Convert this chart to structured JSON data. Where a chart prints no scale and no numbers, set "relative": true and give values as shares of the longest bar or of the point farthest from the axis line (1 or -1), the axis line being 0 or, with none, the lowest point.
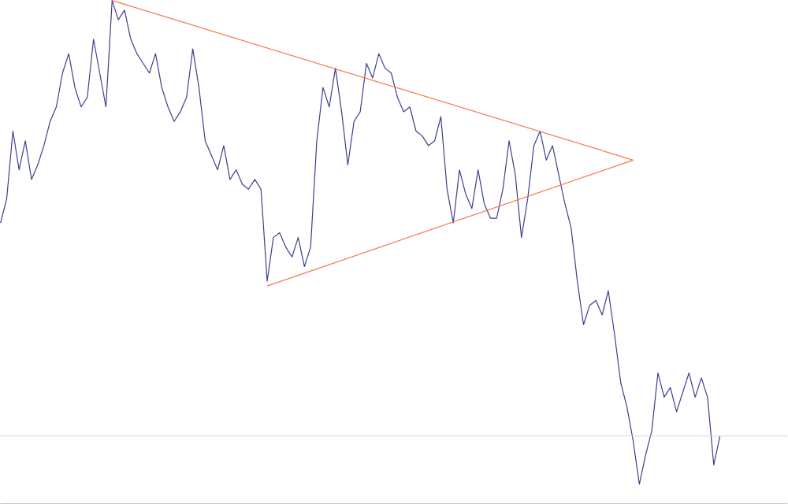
{
  "chart_data": {
    "type": "line",
    "relative": true,
    "categories": [
      null,
      null,
      null,
      null,
      null,
      null,
      null,
      null,
      null,
      null,
      null,
      null,
      null,
      null,
      null,
      null,
      null,
      null,
      null,
      null,
      null,
      null,
      null,
      null,
      null,
      null,
      null,
      null,
      null,
      null,
      null,
      null,
      null,
      null,
      null,
      null,
      null,
      null,
      null,
      null,
      null,
      null,
      null,
      null,
      null,
      null,
      null,
      null,
      null,
      null,
      null,
      null,
      null,
      null,
      null,
      null,
      null,
      null,
      null,
      null,
      null,
      null,
      null,
      null,
      null,
      null,
      null,
      null,
      null,
      null,
      null,
      null,
      null,
      null,
      null,
      null,
      null,
      null,
      null,
      null,
      null,
      null,
      null,
      null,
      null,
      null,
      null,
      null,
      null,
      null,
      null,
      null,
      null,
      null,
      null,
      null,
      null,
      null,
      null,
      null,
      null,
      null,
      null,
      null,
      null,
      null,
      null,
      null,
      null,
      null,
      null,
      null,
      null,
      null,
      null,
      null,
      null
    ],
    "series": [
      {
        "color": "#3b3f8c",
        "values": [
          0.54,
          0.59,
          0.73,
          0.65,
          0.71,
          0.63,
          0.66,
          0.7,
          0.75,
          0.78,
          0.85,
          0.89,
          0.82,
          0.78,
          0.8,
          0.92,
          0.85,
          0.78,
          1.0,
          0.96,
          0.98,
          0.92,
          0.89,
          0.87,
          0.85,
          0.89,
          0.82,
          0.78,
          0.75,
          0.77,
          0.8,
          0.9,
          0.82,
          0.71,
          0.68,
          0.65,
          0.7,
          0.63,
          0.65,
          0.62,
          0.61,
          0.63,
          0.61,
          0.42,
          0.51,
          0.52,
          0.49,
          0.47,
          0.51,
          0.45,
          0.49,
          0.71,
          0.82,
          0.78,
          0.86,
          0.77,
          0.66,
          0.75,
          0.77,
          0.87,
          0.84,
          0.89,
          0.86,
          0.85,
          0.8,
          0.77,
          0.78,
          0.73,
          0.72,
          0.7,
          0.71,
          0.76,
          0.61,
          0.54,
          0.65,
          0.6,
          0.57,
          0.65,
          0.58,
          0.55,
          0.55,
          0.61,
          0.71,
          0.64,
          0.51,
          0.59,
          0.7,
          0.73,
          0.67,
          0.7,
          0.64,
          0.58,
          0.53,
          0.42,
          0.33,
          0.37,
          0.38,
          0.35,
          0.4,
          0.31,
          0.21,
          0.16,
          0.09,
          0.0,
          0.06,
          0.11,
          0.23,
          0.18,
          0.2,
          0.15,
          0.19,
          0.23,
          0.18,
          0.22,
          0.18,
          0.04,
          0.1
        ]
      },
      {
        "color": "#f4794a",
        "values": [
          null,
          null,
          null,
          null,
          null,
          null,
          null,
          null,
          null,
          null,
          null,
          null,
          null,
          null,
          null,
          null,
          null,
          null,
          1.0,
          null,
          null,
          null,
          null,
          null,
          null,
          null,
          null,
          null,
          null,
          null,
          null,
          null,
          null,
          null,
          null,
          null,
          null,
          null,
          null,
          null,
          null,
          null,
          null,
          null,
          null,
          null,
          null,
          null,
          null,
          null,
          null,
          null,
          null,
          null,
          null,
          null,
          null,
          null,
          null,
          null,
          null,
          null,
          null,
          null,
          null,
          null,
          null,
          null,
          null,
          null,
          null,
          null,
          null,
          null,
          null,
          null,
          null,
          null,
          null,
          null,
          null,
          null,
          null,
          null,
          null,
          null,
          null,
          null,
          null,
          null,
          null,
          null,
          null,
          null,
          null,
          null,
          null,
          null,
          null,
          null,
          null,
          null,
          0.67,
          null,
          null,
          null,
          null,
          null,
          null,
          null,
          null,
          null,
          null,
          null,
          null,
          null,
          null
        ]
      },
      {
        "color": "#f4794a",
        "values": [
          null,
          null,
          null,
          null,
          null,
          null,
          null,
          null,
          null,
          null,
          null,
          null,
          null,
          null,
          null,
          null,
          null,
          null,
          null,
          null,
          null,
          null,
          null,
          null,
          null,
          null,
          null,
          null,
          null,
          null,
          null,
          null,
          null,
          null,
          null,
          null,
          null,
          null,
          null,
          null,
          null,
          null,
          null,
          0.41,
          null,
          null,
          null,
          null,
          null,
          null,
          null,
          null,
          null,
          null,
          null,
          null,
          null,
          null,
          null,
          null,
          null,
          null,
          null,
          null,
          null,
          null,
          null,
          null,
          null,
          null,
          null,
          null,
          null,
          null,
          null,
          null,
          null,
          null,
          null,
          null,
          null,
          null,
          null,
          null,
          null,
          null,
          null,
          null,
          null,
          null,
          null,
          null,
          null,
          null,
          null,
          null,
          null,
          null,
          null,
          null,
          null,
          null,
          0.67,
          null,
          null,
          null,
          null,
          null,
          null,
          null,
          null,
          null,
          null,
          null,
          null,
          null,
          null
        ]
      }
    ],
    "ref_lines": [
      {
        "axis": "y",
        "value": 0.1,
        "color": "#d9d9d9"
      }
    ]
  }
}
